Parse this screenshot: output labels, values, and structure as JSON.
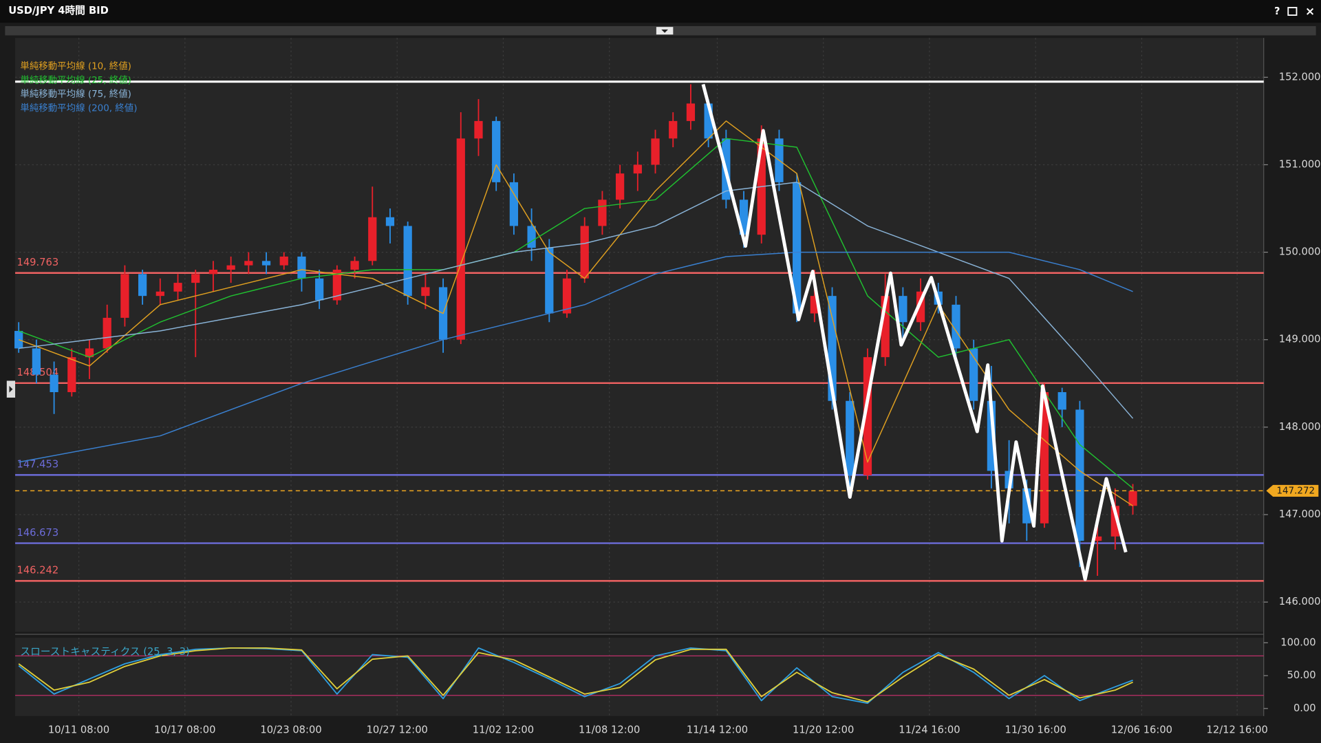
{
  "window_controls": [
    "?",
    "×"
  ],
  "chart_data": [
    {
      "type": "candlestick",
      "title": "USD/JPY 4時間 BID",
      "x": [
        0,
        1,
        2,
        3,
        4,
        5,
        6,
        7,
        8,
        9,
        10,
        11,
        12,
        13,
        14,
        15,
        16,
        17,
        18,
        19,
        20,
        21,
        22,
        23,
        24,
        25,
        26,
        27,
        28,
        29,
        30,
        31,
        32,
        33,
        34,
        35,
        36,
        37,
        38,
        39,
        40,
        41,
        42,
        43,
        44,
        45,
        46,
        47,
        48,
        49,
        50,
        51,
        52,
        53,
        54,
        55,
        56,
        57,
        58,
        59,
        60,
        61,
        62,
        63
      ],
      "open": [
        149.1,
        148.9,
        148.6,
        148.4,
        148.8,
        148.9,
        149.25,
        149.75,
        149.5,
        149.55,
        149.65,
        149.75,
        149.8,
        149.85,
        149.9,
        149.85,
        149.95,
        149.7,
        149.45,
        149.8,
        149.9,
        150.4,
        150.3,
        149.5,
        149.6,
        149.0,
        151.3,
        151.5,
        150.8,
        150.3,
        150.05,
        149.3,
        149.7,
        150.3,
        150.6,
        150.9,
        151.0,
        151.3,
        151.5,
        151.7,
        151.3,
        150.6,
        150.2,
        151.3,
        150.8,
        149.3,
        149.5,
        148.3,
        147.45,
        148.8,
        149.5,
        149.2,
        149.55,
        149.4,
        148.9,
        148.3,
        147.5,
        147.3,
        146.9,
        148.4,
        148.2,
        146.7,
        146.75,
        147.1
      ],
      "high": [
        149.2,
        149.0,
        148.75,
        148.9,
        149.0,
        149.4,
        149.85,
        149.8,
        149.7,
        149.75,
        149.8,
        149.9,
        149.95,
        150.0,
        150.0,
        150.0,
        150.0,
        149.8,
        149.85,
        149.95,
        150.75,
        150.5,
        150.35,
        149.75,
        149.7,
        151.6,
        151.75,
        151.55,
        150.9,
        150.5,
        150.15,
        149.8,
        150.4,
        150.7,
        151.0,
        151.15,
        151.4,
        151.6,
        151.92,
        151.75,
        151.4,
        150.7,
        151.45,
        151.4,
        150.9,
        149.8,
        149.6,
        148.4,
        148.9,
        149.75,
        149.6,
        149.7,
        149.65,
        149.5,
        149.0,
        148.7,
        147.85,
        147.4,
        148.5,
        148.45,
        148.3,
        147.0,
        147.3,
        147.35
      ],
      "low": [
        148.85,
        148.5,
        148.15,
        148.35,
        148.55,
        148.85,
        149.15,
        149.4,
        149.4,
        149.45,
        148.8,
        149.55,
        149.65,
        149.75,
        149.75,
        149.8,
        149.55,
        149.35,
        149.4,
        149.7,
        149.85,
        150.1,
        149.4,
        149.35,
        148.85,
        148.95,
        151.1,
        150.7,
        150.2,
        149.9,
        149.2,
        149.25,
        149.65,
        150.2,
        150.5,
        150.7,
        150.9,
        151.2,
        151.4,
        151.2,
        150.5,
        150.05,
        150.1,
        150.7,
        149.2,
        149.2,
        148.2,
        147.3,
        147.4,
        148.7,
        148.95,
        149.1,
        149.3,
        148.8,
        148.2,
        147.3,
        146.9,
        146.7,
        146.85,
        148.0,
        146.4,
        146.3,
        146.6,
        147.0
      ],
      "close": [
        148.9,
        148.6,
        148.4,
        148.8,
        148.9,
        149.25,
        149.75,
        149.5,
        149.55,
        149.65,
        149.75,
        149.8,
        149.85,
        149.9,
        149.85,
        149.95,
        149.7,
        149.45,
        149.8,
        149.9,
        150.4,
        150.3,
        149.5,
        149.6,
        149.0,
        151.3,
        151.5,
        150.8,
        150.3,
        150.05,
        149.3,
        149.7,
        150.3,
        150.6,
        150.9,
        151.0,
        151.3,
        151.5,
        151.7,
        151.3,
        150.6,
        150.2,
        151.3,
        150.8,
        149.3,
        149.5,
        148.3,
        147.45,
        148.8,
        149.5,
        149.2,
        149.55,
        149.4,
        148.9,
        148.3,
        147.5,
        147.3,
        146.9,
        148.4,
        148.2,
        146.7,
        146.75,
        147.1,
        147.27
      ],
      "up_color": "#e8202a",
      "down_color": "#2a8ee6",
      "xlim": [
        -0.2,
        70.4
      ],
      "xticks": [
        {
          "value": 3.4,
          "label": "10/11 08:00"
        },
        {
          "value": 9.4,
          "label": "10/17 08:00"
        },
        {
          "value": 15.4,
          "label": "10/23 08:00"
        },
        {
          "value": 21.4,
          "label": "10/27 12:00"
        },
        {
          "value": 27.4,
          "label": "11/02 12:00"
        },
        {
          "value": 33.4,
          "label": "11/08 12:00"
        },
        {
          "value": 39.5,
          "label": "11/14 12:00"
        },
        {
          "value": 45.5,
          "label": "11/20 12:00"
        },
        {
          "value": 51.5,
          "label": "11/24 16:00"
        },
        {
          "value": 57.5,
          "label": "11/30 16:00"
        },
        {
          "value": 63.5,
          "label": "12/06 16:00"
        },
        {
          "value": 68.9,
          "label": "12/12 16:00"
        }
      ],
      "ylim": [
        145.66,
        152.45
      ],
      "yticks": [
        {
          "value": 146,
          "label": "146.000"
        },
        {
          "value": 147,
          "label": "147.000"
        },
        {
          "value": 148,
          "label": "148.000"
        },
        {
          "value": 149,
          "label": "149.000"
        },
        {
          "value": 150,
          "label": "150.000"
        },
        {
          "value": 151,
          "label": "151.000"
        },
        {
          "value": 152,
          "label": "152.000"
        }
      ],
      "grid": true,
      "series": [
        {
          "name": "単純移動平均線 (10, 終値)",
          "color": "#e0a020",
          "x": [
            0,
            4,
            8,
            12,
            16,
            20,
            24,
            27,
            30,
            32,
            36,
            40,
            44,
            48,
            52,
            56,
            60,
            63
          ],
          "values": [
            149.0,
            148.7,
            149.4,
            149.6,
            149.8,
            149.7,
            149.3,
            151.0,
            150.0,
            149.7,
            150.7,
            151.5,
            150.9,
            147.6,
            149.4,
            148.2,
            147.5,
            147.1
          ]
        },
        {
          "name": "単純移動平均線 (25, 終値)",
          "color": "#20c030",
          "x": [
            0,
            4,
            8,
            12,
            16,
            20,
            24,
            28,
            32,
            36,
            40,
            44,
            48,
            52,
            56,
            60,
            63
          ],
          "values": [
            149.1,
            148.8,
            149.2,
            149.5,
            149.7,
            149.8,
            149.8,
            150.0,
            150.5,
            150.6,
            151.3,
            151.2,
            149.5,
            148.8,
            149.0,
            147.8,
            147.3
          ]
        },
        {
          "name": "単純移動平均線 (75, 終値)",
          "color": "#8ab4d8",
          "x": [
            0,
            8,
            16,
            24,
            28,
            32,
            36,
            40,
            44,
            48,
            52,
            56,
            60,
            63
          ],
          "values": [
            148.9,
            149.1,
            149.4,
            149.8,
            150.0,
            150.1,
            150.3,
            150.7,
            150.8,
            150.3,
            150.0,
            149.7,
            148.8,
            148.1
          ]
        },
        {
          "name": "単純移動平均線 (200, 終値)",
          "color": "#3a80d0",
          "x": [
            0,
            8,
            16,
            24,
            32,
            36,
            40,
            44,
            48,
            52,
            56,
            60,
            63
          ],
          "values": [
            147.6,
            147.9,
            148.5,
            149.0,
            149.4,
            149.75,
            149.95,
            150.0,
            150.0,
            150.0,
            150.0,
            149.8,
            149.55
          ]
        }
      ],
      "levels": [
        {
          "value": 149.763,
          "color": "#f06262"
        },
        {
          "value": 148.504,
          "color": "#f06262"
        },
        {
          "value": 147.453,
          "color": "#6c6cd8"
        },
        {
          "value": 146.673,
          "color": "#6c6cd8"
        },
        {
          "value": 146.242,
          "color": "#f06262"
        }
      ],
      "resistance_line": {
        "value": 151.95,
        "color": "#ffffff"
      },
      "current_price": {
        "value": 147.272,
        "color": "#f0a820"
      },
      "zigzag": {
        "color": "#ffffff",
        "x": [
          38.7,
          41.1,
          42.1,
          44.1,
          44.9,
          47.0,
          49.3,
          49.9,
          51.6,
          54.2,
          54.8,
          55.6,
          56.4,
          57.4,
          57.9,
          60.3,
          61.5,
          62.6
        ],
        "values": [
          151.92,
          150.07,
          151.39,
          149.23,
          149.78,
          147.2,
          149.76,
          148.94,
          149.71,
          147.95,
          148.71,
          146.7,
          147.83,
          146.87,
          148.47,
          146.26,
          147.41,
          146.57
        ]
      }
    },
    {
      "type": "line",
      "title": "スローストキャスティクス (25, 3, 3)",
      "x": [
        0,
        2,
        4,
        6,
        8,
        10,
        12,
        14,
        16,
        18,
        20,
        22,
        24,
        26,
        28,
        30,
        32,
        34,
        36,
        38,
        40,
        42,
        44,
        46,
        48,
        50,
        52,
        54,
        56,
        58,
        60,
        62,
        63
      ],
      "series": [
        {
          "color": "#2f9fe0",
          "values": [
            65,
            22,
            45,
            68,
            82,
            90,
            92,
            91,
            88,
            22,
            82,
            78,
            15,
            92,
            70,
            45,
            18,
            38,
            80,
            92,
            88,
            12,
            62,
            18,
            8,
            55,
            85,
            55,
            15,
            50,
            12,
            33,
            43
          ]
        },
        {
          "color": "#e0cf3a",
          "values": [
            68,
            28,
            40,
            64,
            80,
            88,
            92,
            92,
            89,
            30,
            75,
            80,
            20,
            85,
            74,
            48,
            22,
            32,
            74,
            90,
            90,
            18,
            55,
            24,
            10,
            48,
            82,
            60,
            20,
            44,
            16,
            28,
            40
          ]
        }
      ],
      "ylim": [
        -11.5,
        107.7
      ],
      "yticks": [
        {
          "value": 0,
          "label": "0.00"
        },
        {
          "value": 50,
          "label": "50.00"
        },
        {
          "value": 100,
          "label": "100.00"
        }
      ],
      "levels": [
        80,
        20
      ],
      "level_color": "#c0306a"
    }
  ]
}
